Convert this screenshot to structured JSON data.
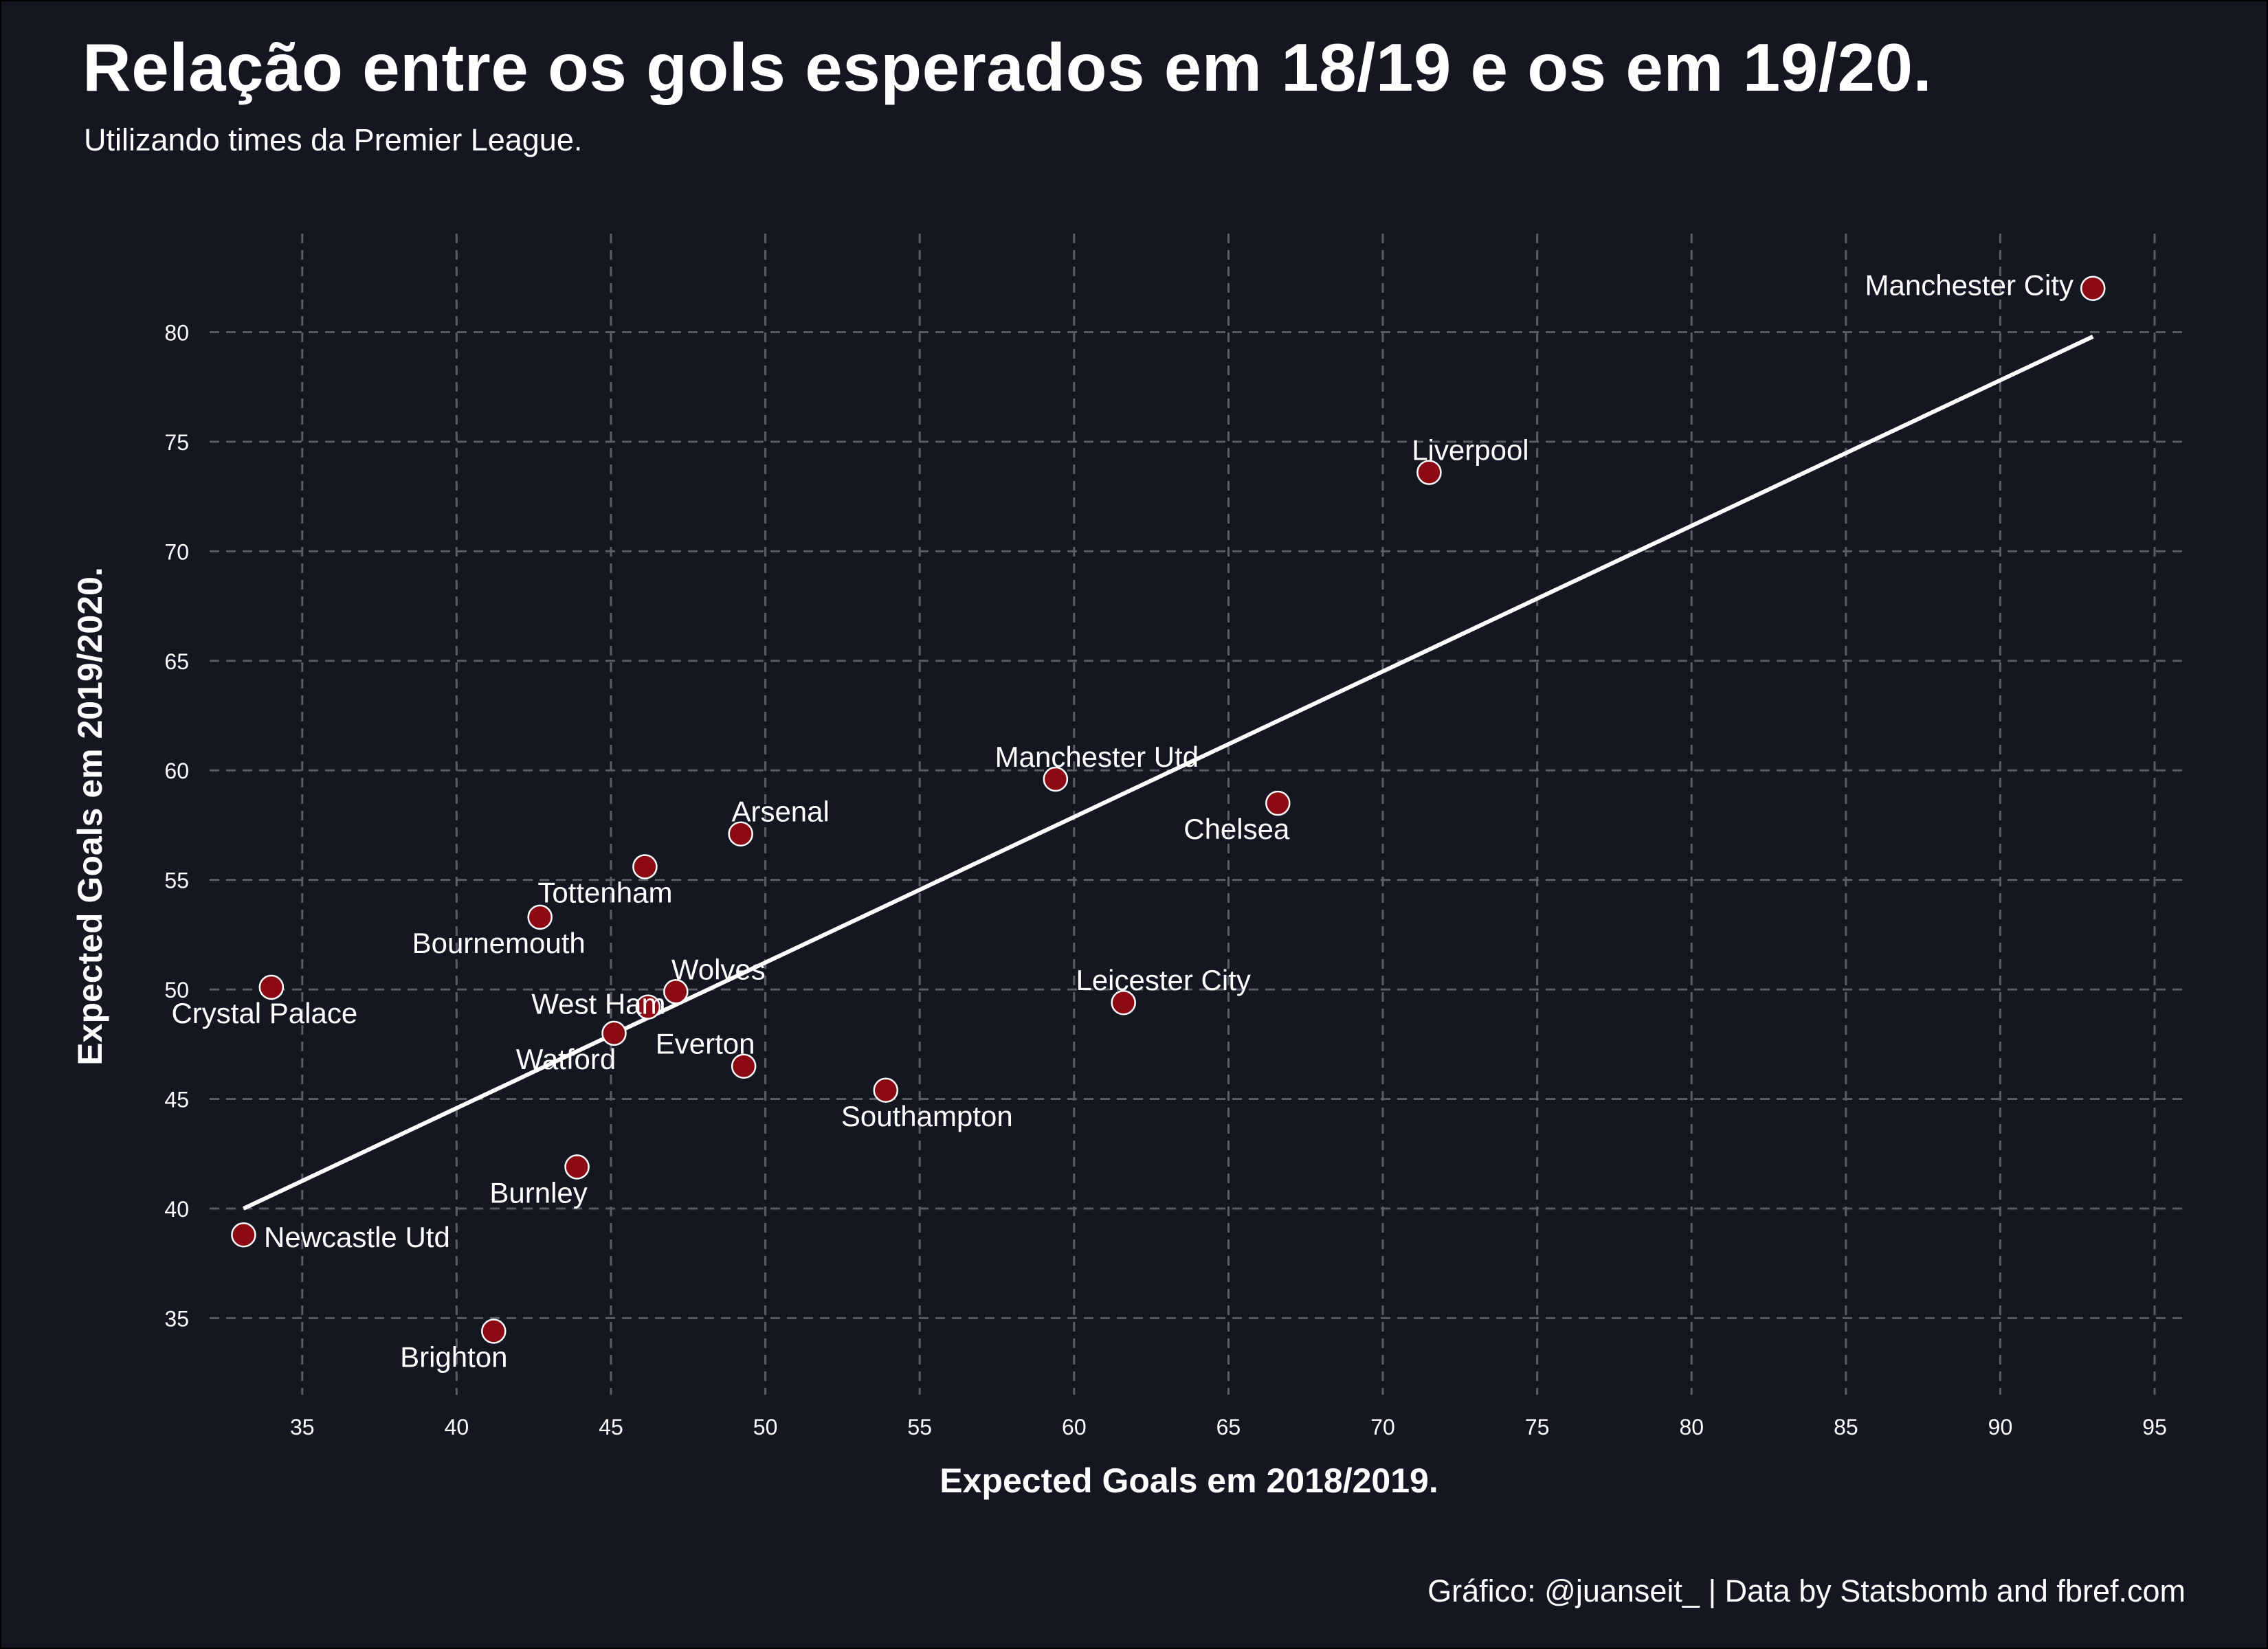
{
  "title": "Relação entre os gols esperados em 18/19 e os em 19/20.",
  "subtitle": "Utilizando times da Premier League.",
  "caption": "Gráfico: @juanseit_ | Data by Statsbomb and fbref.com",
  "colors": {
    "background": "#141722",
    "point_fill": "#8b0a13",
    "point_stroke": "#ffffff",
    "trend_line": "#ffffff",
    "grid": "#5a5d66",
    "text": "#ffffff"
  },
  "chart_data": {
    "type": "scatter",
    "xlabel": "Expected Goals em 2018/2019.",
    "ylabel": "Expected Goals em 2019/2020.",
    "xlim": [
      32,
      96
    ],
    "ylim": [
      31.5,
      84.5
    ],
    "x_ticks": [
      35,
      40,
      45,
      50,
      55,
      60,
      65,
      70,
      75,
      80,
      85,
      90,
      95
    ],
    "y_ticks": [
      35,
      40,
      45,
      50,
      55,
      60,
      65,
      70,
      75,
      80
    ],
    "grid": true,
    "grid_style": "dashed",
    "trend_line": {
      "x": [
        33.1,
        93.0
      ],
      "y": [
        40.0,
        79.8
      ]
    },
    "points": [
      {
        "label": "Manchester City",
        "x": 93.0,
        "y": 82.0
      },
      {
        "label": "Liverpool",
        "x": 71.5,
        "y": 73.6
      },
      {
        "label": "Manchester Utd",
        "x": 59.4,
        "y": 59.6
      },
      {
        "label": "Chelsea",
        "x": 66.6,
        "y": 58.5
      },
      {
        "label": "Arsenal",
        "x": 49.2,
        "y": 57.1
      },
      {
        "label": "Tottenham",
        "x": 46.1,
        "y": 55.6
      },
      {
        "label": "Bournemouth",
        "x": 42.7,
        "y": 53.3
      },
      {
        "label": "Crystal Palace",
        "x": 34.0,
        "y": 50.1
      },
      {
        "label": "Wolves",
        "x": 47.1,
        "y": 49.9
      },
      {
        "label": "West Ham",
        "x": 46.2,
        "y": 49.2
      },
      {
        "label": "Leicester City",
        "x": 61.6,
        "y": 49.4
      },
      {
        "label": "Watford",
        "x": 45.1,
        "y": 48.0
      },
      {
        "label": "Everton",
        "x": 49.3,
        "y": 46.5
      },
      {
        "label": "Southampton",
        "x": 53.9,
        "y": 45.4
      },
      {
        "label": "Burnley",
        "x": 43.9,
        "y": 41.9
      },
      {
        "label": "Newcastle Utd",
        "x": 33.1,
        "y": 38.8
      },
      {
        "label": "Brighton",
        "x": 41.2,
        "y": 34.4
      }
    ]
  }
}
